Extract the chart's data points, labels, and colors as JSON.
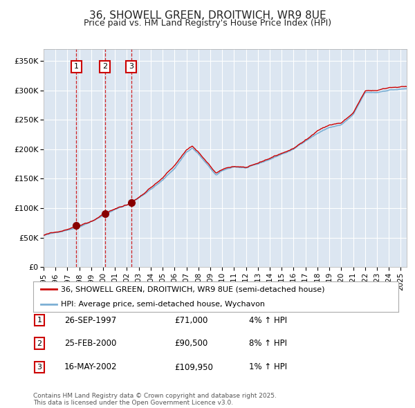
{
  "title": "36, SHOWELL GREEN, DROITWICH, WR9 8UE",
  "subtitle": "Price paid vs. HM Land Registry's House Price Index (HPI)",
  "title_fontsize": 11,
  "subtitle_fontsize": 9,
  "background_color": "#ffffff",
  "plot_bg_color": "#dce6f1",
  "grid_color": "#ffffff",
  "ylabel_ticks": [
    "£0",
    "£50K",
    "£100K",
    "£150K",
    "£200K",
    "£250K",
    "£300K",
    "£350K"
  ],
  "ytick_values": [
    0,
    50000,
    100000,
    150000,
    200000,
    250000,
    300000,
    350000
  ],
  "ylim": [
    0,
    370000
  ],
  "xlim_start": 1995.0,
  "xlim_end": 2025.5,
  "xtick_years": [
    1995,
    1996,
    1997,
    1998,
    1999,
    2000,
    2001,
    2002,
    2003,
    2004,
    2005,
    2006,
    2007,
    2008,
    2009,
    2010,
    2011,
    2012,
    2013,
    2014,
    2015,
    2016,
    2017,
    2018,
    2019,
    2020,
    2021,
    2022,
    2023,
    2024,
    2025
  ],
  "legend_entries": [
    "36, SHOWELL GREEN, DROITWICH, WR9 8UE (semi-detached house)",
    "HPI: Average price, semi-detached house, Wychavon"
  ],
  "legend_colors": [
    "#cc0000",
    "#7bafd4"
  ],
  "sale_points": [
    {
      "label": "1",
      "date_num": 1997.74,
      "price": 71000,
      "date_str": "26-SEP-1997",
      "price_str": "£71,000",
      "hpi_str": "4% ↑ HPI"
    },
    {
      "label": "2",
      "date_num": 2000.15,
      "price": 90500,
      "date_str": "25-FEB-2000",
      "price_str": "£90,500",
      "hpi_str": "8% ↑ HPI"
    },
    {
      "label": "3",
      "date_num": 2002.37,
      "price": 109950,
      "date_str": "16-MAY-2002",
      "price_str": "£109,950",
      "hpi_str": "1% ↑ HPI"
    }
  ],
  "footer_text": "Contains HM Land Registry data © Crown copyright and database right 2025.\nThis data is licensed under the Open Government Licence v3.0.",
  "hpi_line_color": "#7bafd4",
  "price_line_color": "#cc0000",
  "vline_color": "#cc0000",
  "sale_marker_color": "#880000",
  "box_edge_color": "#cc0000"
}
